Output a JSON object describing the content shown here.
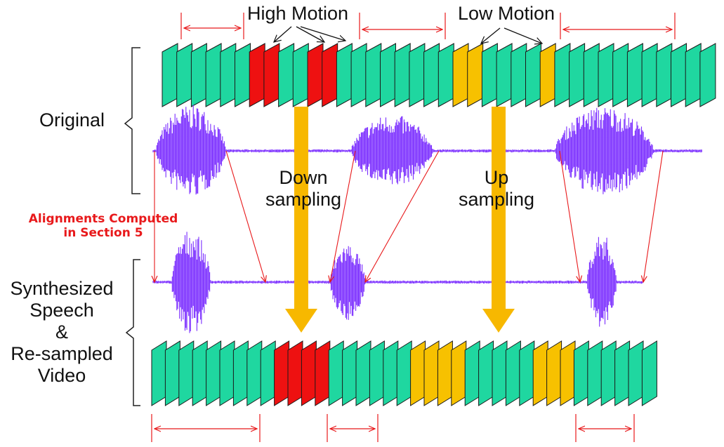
{
  "labels": {
    "high_motion": "High Motion",
    "low_motion": "Low Motion",
    "original": "Original",
    "down_sampling_1": "Down",
    "down_sampling_2": "sampling",
    "up_sampling_1": "Up",
    "up_sampling_2": "sampling",
    "alignments_1": "Alignments Computed",
    "alignments_2": "in Section 5",
    "synth_1": "Synthesized",
    "synth_2": "Speech",
    "synth_3": "&",
    "synth_4": "Re-sampled",
    "synth_5": "Video"
  },
  "colors": {
    "normal_frame": "#1fd7a0",
    "high_motion_frame": "#ee1111",
    "low_motion_frame": "#f7c100",
    "waveform": "#7a2cff",
    "arrow": "#f7b800",
    "annotation": "#e8191b",
    "alignment_line": "#e8191b"
  },
  "original_frames": [
    "n",
    "n",
    "n",
    "n",
    "n",
    "n",
    "h",
    "h",
    "n",
    "n",
    "h",
    "h",
    "n",
    "n",
    "n",
    "n",
    "n",
    "n",
    "n",
    "n",
    "l",
    "l",
    "n",
    "n",
    "n",
    "n",
    "l",
    "n",
    "n",
    "n",
    "n",
    "n",
    "n",
    "n",
    "n",
    "n",
    "n",
    "n"
  ],
  "resampled_frames": [
    "n",
    "n",
    "n",
    "n",
    "n",
    "n",
    "n",
    "n",
    "n",
    "h",
    "h",
    "h",
    "h",
    "n",
    "n",
    "n",
    "n",
    "n",
    "n",
    "l",
    "l",
    "l",
    "l",
    "n",
    "n",
    "n",
    "n",
    "n",
    "l",
    "l",
    "l",
    "n",
    "n",
    "n",
    "n",
    "n",
    "n"
  ]
}
